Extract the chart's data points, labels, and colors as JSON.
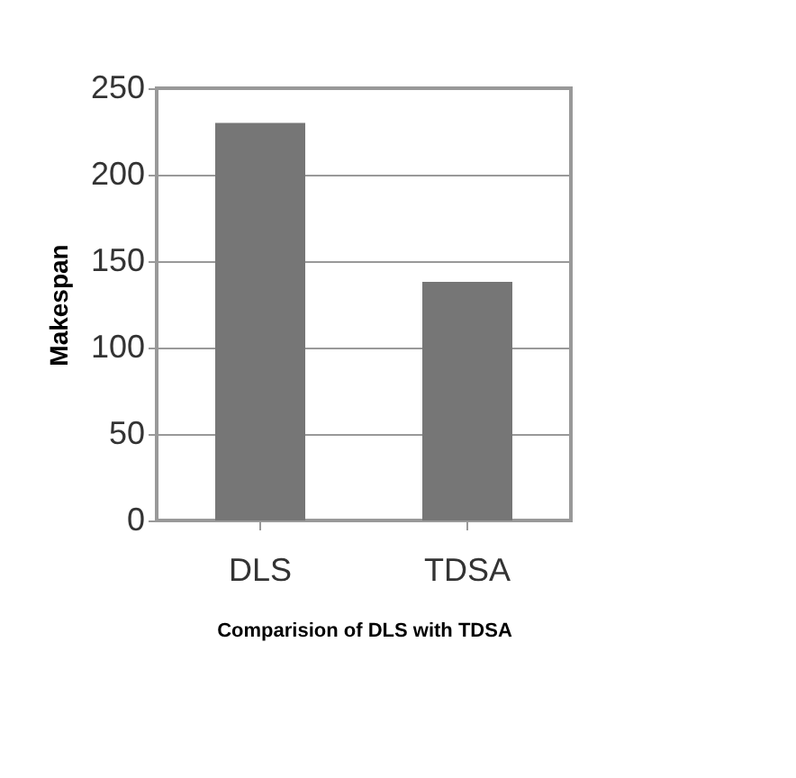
{
  "chart_data": {
    "type": "bar",
    "categories": [
      "DLS",
      "TDSA"
    ],
    "values": [
      230,
      138
    ],
    "color": "#767676",
    "xlabel": "Comparision of DLS with TDSA",
    "ylabel": "Makespan",
    "ylim": [
      0,
      250
    ],
    "yticks": [
      0,
      50,
      100,
      150,
      200,
      250
    ],
    "grid": "y",
    "legend": false
  }
}
